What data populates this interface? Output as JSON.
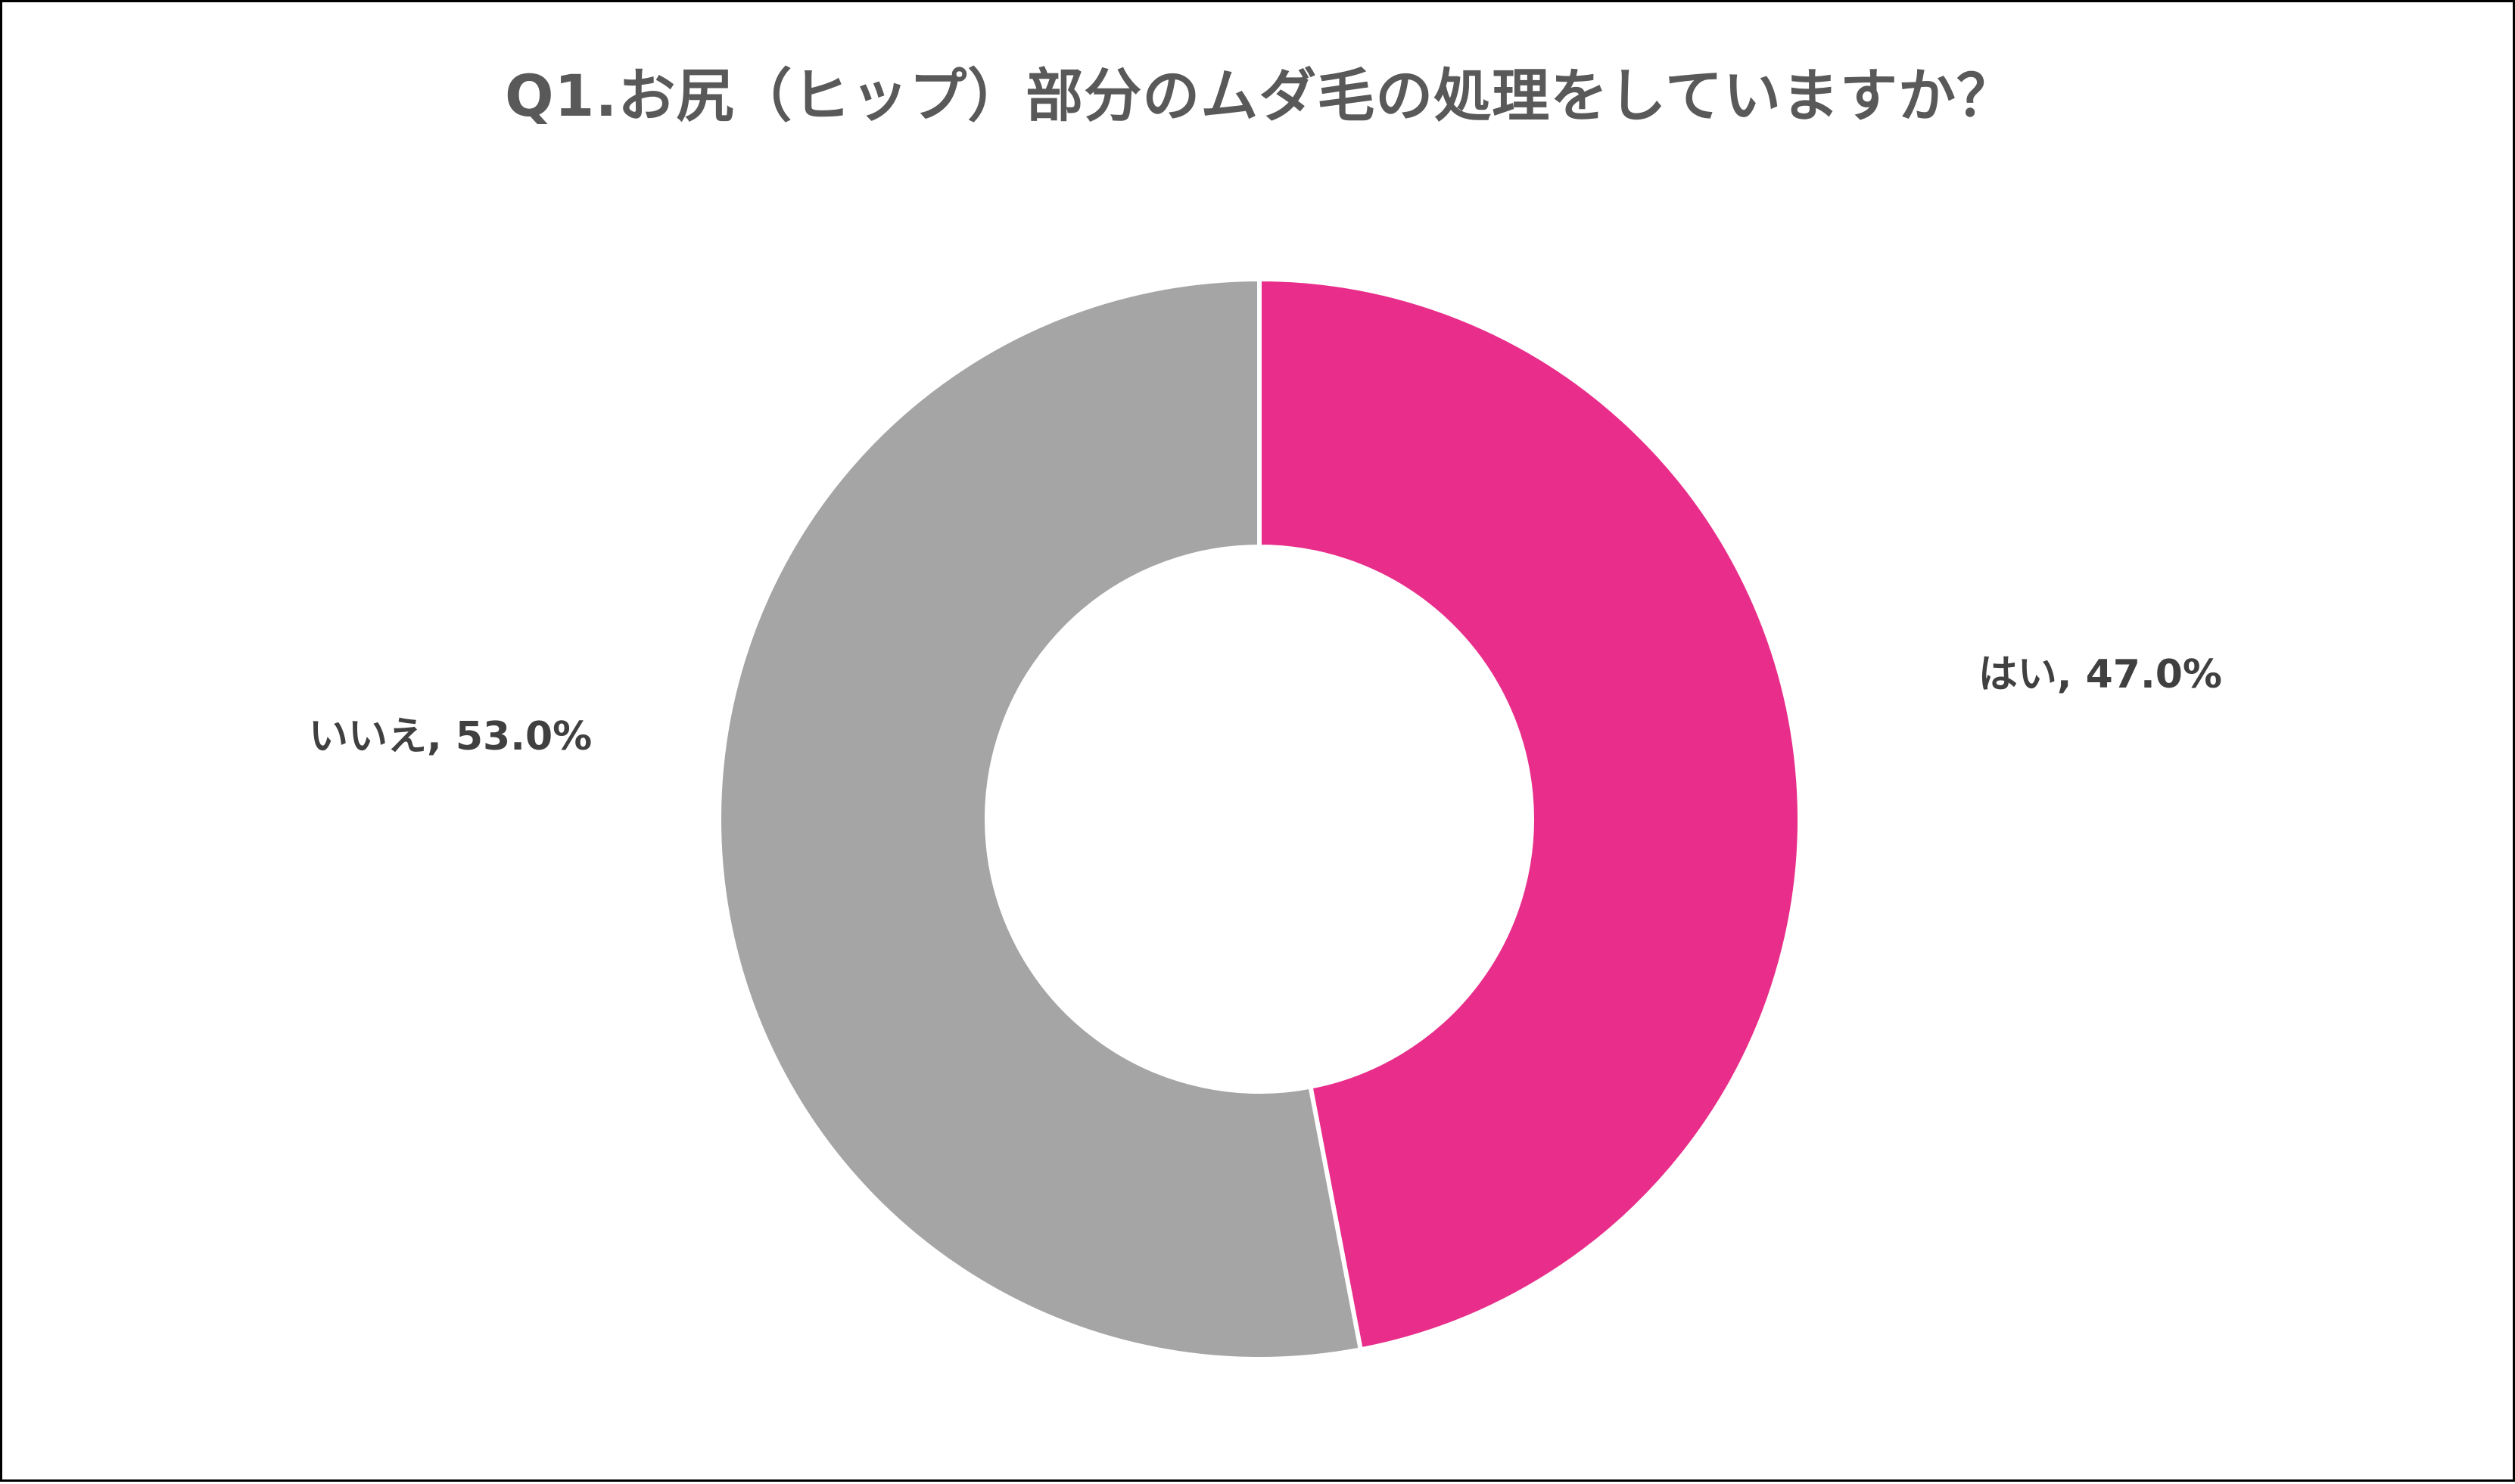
{
  "chart_data": {
    "type": "pie",
    "variant": "donut",
    "title": "Q1.お尻（ヒップ）部分のムダ毛の処理をしていますか？",
    "slices": [
      {
        "label": "はい",
        "value": 47.0,
        "display": "はい, 47.0%",
        "color": "#E82E8A"
      },
      {
        "label": "いいえ",
        "value": 53.0,
        "display": "いいえ, 53.0%",
        "color": "#A5A5A5"
      }
    ],
    "unit": "%",
    "start_angle": "12 o'clock",
    "direction": "clockwise",
    "legend": "none",
    "data_labels": "outside"
  }
}
